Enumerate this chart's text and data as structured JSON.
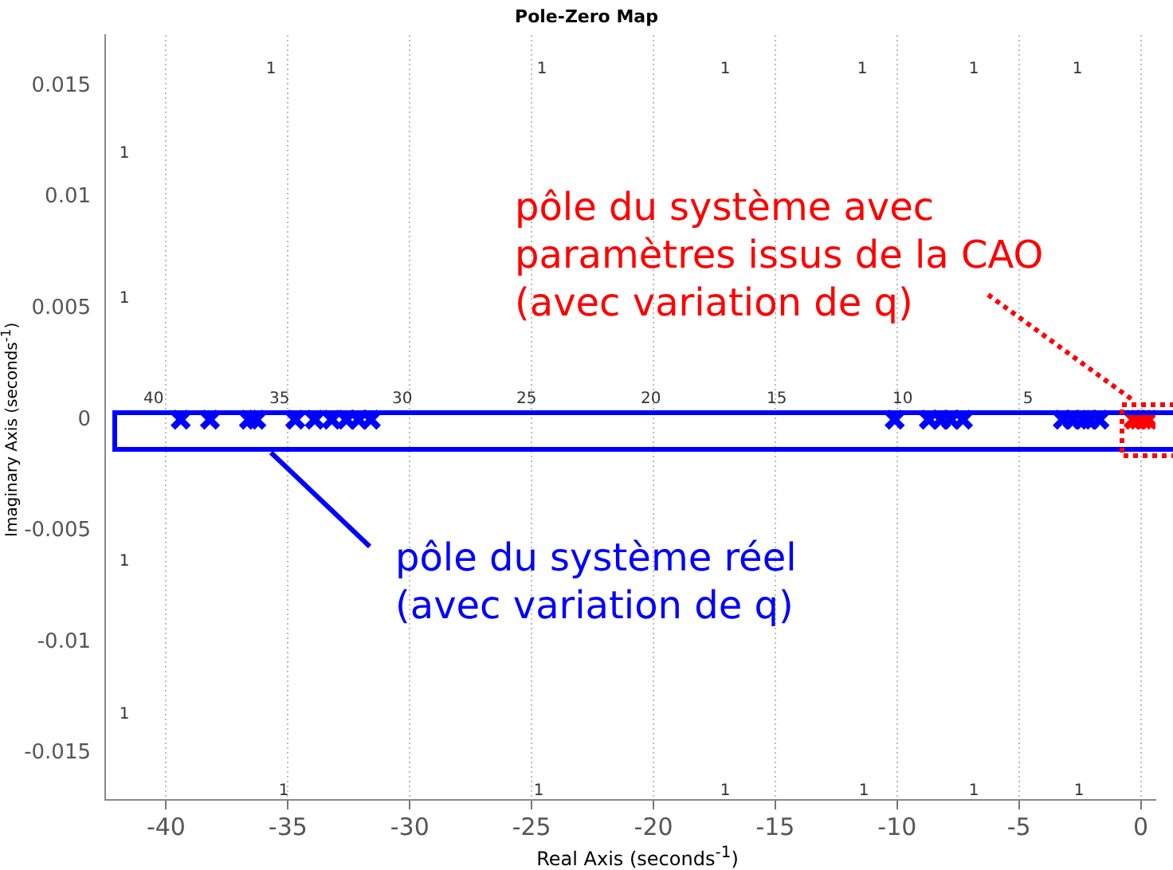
{
  "chart_data": {
    "type": "scatter",
    "title": "Pole-Zero Map",
    "xlabel": "Real Axis (seconds$^{-1}$)",
    "ylabel": "Imaginary Axis (seconds$^{-1}$)",
    "series": [
      {
        "name": "pôle du système réel\n(avec variation de q)",
        "color": "#0000ff",
        "x": [
          -39.4,
          -38.2,
          -36.6,
          -36.3,
          -34.7,
          -33.9,
          -33.2,
          -32.6,
          -32.1,
          -31.6,
          -10.1,
          -8.7,
          -8.2,
          -7.8,
          -7.3,
          -3.2,
          -2.8,
          -2.4,
          -2.1,
          -1.7
        ],
        "values": [
          0,
          0,
          0,
          0,
          0,
          0,
          0,
          0,
          0,
          0,
          0,
          0,
          0,
          0,
          0,
          0,
          0,
          0,
          0,
          0
        ]
      },
      {
        "name": "pôle du système avec\nparamètres issus de la CAO\n(avec variation de q)",
        "color": "#ff0000",
        "x": [
          -0.3,
          -0.1,
          0.1,
          0.3
        ],
        "values": [
          0,
          0,
          0,
          0
        ]
      }
    ],
    "marker": "cross",
    "grid": "x",
    "xlim": [
      -42.5,
      0.6
    ],
    "xticks": [
      -40,
      -35,
      -30,
      -25,
      -20,
      -15,
      -10,
      -5,
      0
    ],
    "ylim": [
      -0.0171,
      0.0173
    ],
    "yticks": [
      -0.015,
      -0.01,
      -0.005,
      0,
      0.005,
      0.01,
      0.015
    ],
    "annotations": [
      "1",
      "1",
      "1",
      "1",
      "1",
      "1",
      "1",
      "1",
      "1",
      "1",
      "1",
      "1",
      "1",
      "1",
      "1",
      "1",
      "40",
      "35",
      "30",
      "25",
      "20",
      "15",
      "10",
      "5"
    ]
  }
}
